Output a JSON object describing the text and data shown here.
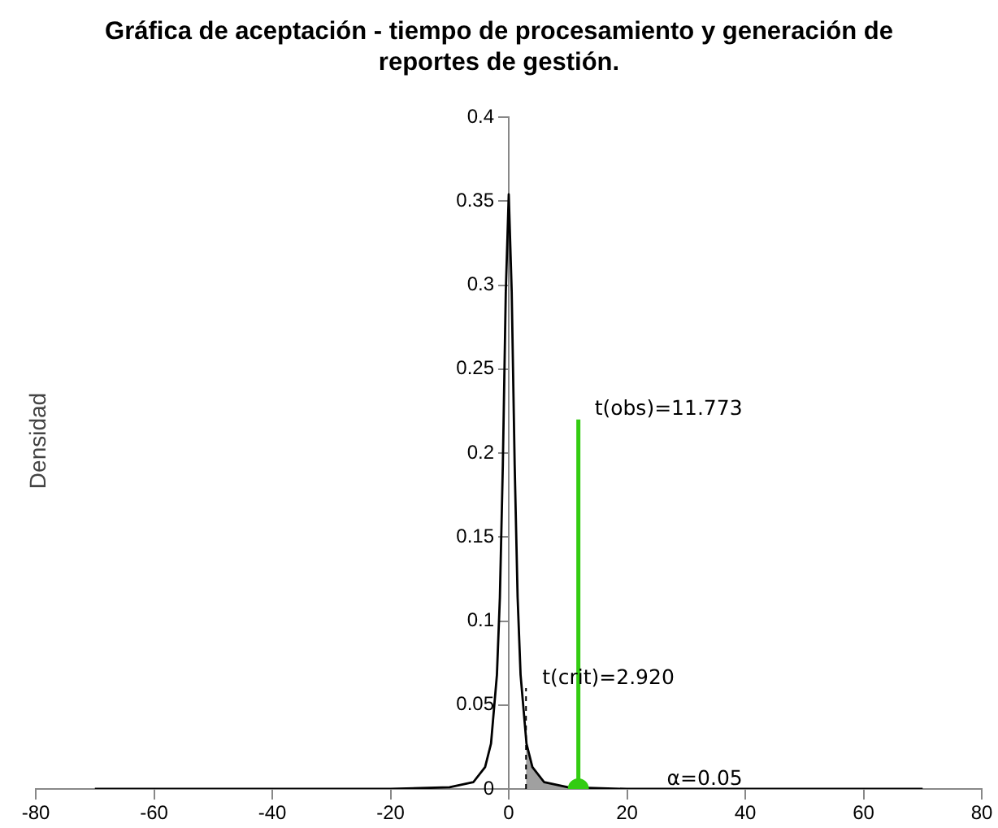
{
  "chart_data": {
    "type": "line",
    "title": "Gráfica de aceptación - tiempo de procesamiento y generación de reportes de gestión.",
    "ylabel": "Densidad",
    "series": [
      {
        "type": "line",
        "color": "#000000",
        "x": [
          -70,
          -40,
          -20,
          -10,
          -6,
          -4,
          -3,
          -2,
          -1.5,
          -1,
          -0.5,
          0,
          0.5,
          1,
          1.5,
          2,
          3,
          4,
          6,
          10,
          20,
          40,
          70
        ],
        "values": [
          0,
          0,
          0,
          0.001,
          0.004,
          0.013,
          0.027,
          0.068,
          0.114,
          0.193,
          0.296,
          0.354,
          0.296,
          0.193,
          0.114,
          0.068,
          0.027,
          0.013,
          0.004,
          0.001,
          0,
          0,
          0
        ]
      },
      {
        "type": "area",
        "color": "#a0a0a0",
        "x": [
          2.92,
          3,
          4,
          6,
          10,
          20,
          40,
          70
        ],
        "values": [
          0.029,
          0.027,
          0.013,
          0.004,
          0.001,
          0,
          0,
          0
        ]
      },
      {
        "type": "line",
        "color": "#000000",
        "line_style": "dashed",
        "x": [
          2.92,
          2.92
        ],
        "values": [
          0,
          0.06
        ]
      },
      {
        "type": "line",
        "color": "#33cc11",
        "x": [
          11.773,
          11.773
        ],
        "values": [
          0,
          0.22
        ]
      },
      {
        "type": "scatter",
        "color": "#33cc11",
        "marker": "circle",
        "x": [
          11.773
        ],
        "values": [
          0
        ]
      }
    ],
    "annotations": [
      {
        "text": "t(obs)=11.773",
        "x": 11.773,
        "y": 0.22
      },
      {
        "text": "t(crit)=2.920",
        "x": 2.92,
        "y": 0.06
      },
      {
        "text": "α=0.05",
        "x": 24,
        "y": 0
      }
    ],
    "xlim": [
      -80,
      80
    ],
    "xticks": [
      -80,
      -60,
      -40,
      -20,
      0,
      20,
      40,
      60,
      80
    ],
    "ylim": [
      0,
      0.4
    ],
    "yticks": [
      0,
      0.05,
      0.1,
      0.15,
      0.2,
      0.25,
      0.3,
      0.35,
      0.4
    ],
    "grid": false,
    "legend": false
  }
}
